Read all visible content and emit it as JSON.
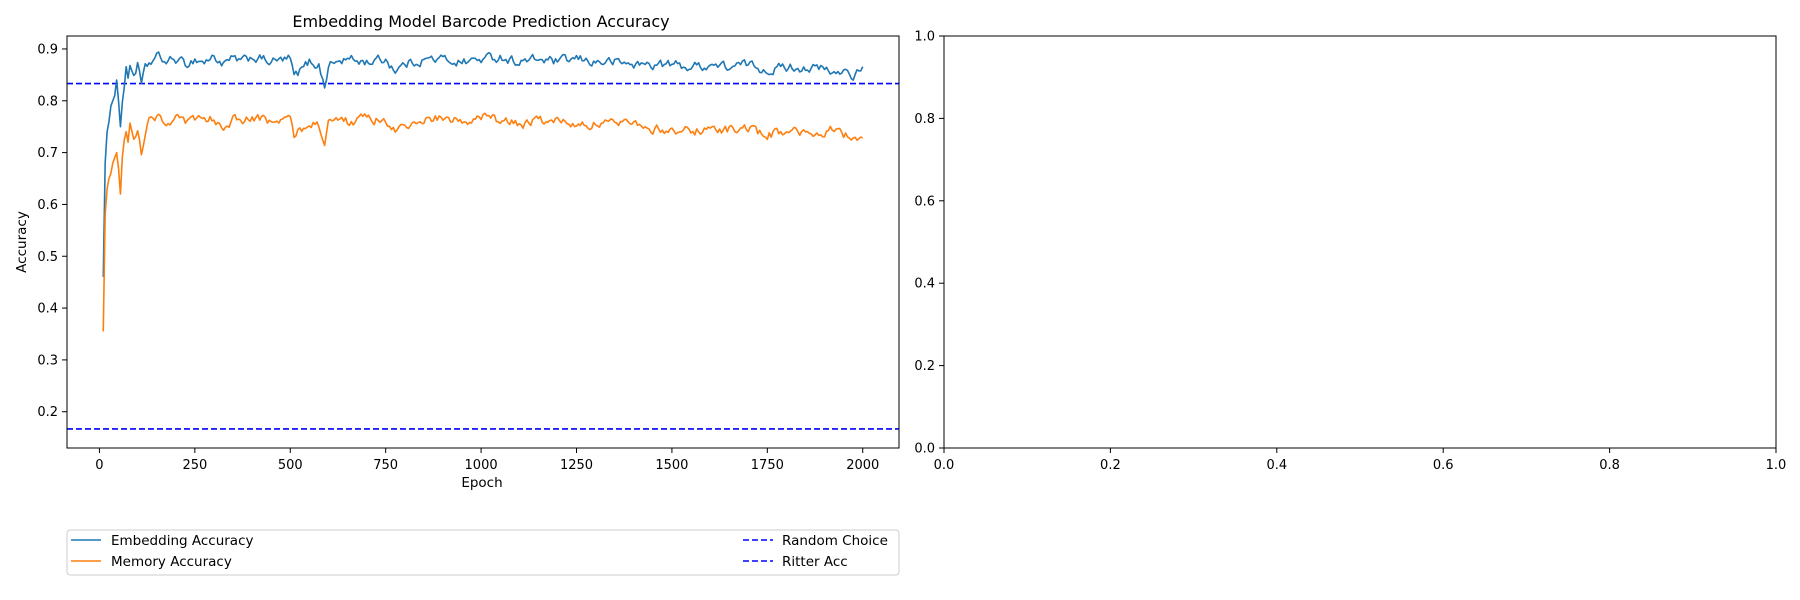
{
  "chart_data": [
    {
      "type": "line",
      "title": "Embedding Model Barcode Prediction Accuracy",
      "xlabel": "Epoch",
      "ylabel": "Accuracy",
      "xlim": [
        -85,
        2095
      ],
      "ylim": [
        0.13,
        0.925
      ],
      "xticks": [
        0,
        250,
        500,
        750,
        1000,
        1250,
        1500,
        1750,
        2000
      ],
      "yticks": [
        0.2,
        0.3,
        0.4,
        0.5,
        0.6,
        0.7,
        0.8,
        0.9
      ],
      "grid": false,
      "legend_position": "below",
      "series": [
        {
          "name": "Embedding Accuracy",
          "color": "#1f77b4",
          "style": "solid",
          "anchors": {
            "x": [
              10,
              15,
              20,
              25,
              30,
              35,
              40,
              45,
              50,
              55,
              60,
              65,
              70,
              75,
              80,
              90,
              100,
              110,
              120,
              130,
              150,
              175,
              200,
              225,
              250,
              275,
              300,
              325,
              350,
              375,
              400,
              450,
              500,
              510,
              530,
              550,
              575,
              590,
              600,
              625,
              650,
              700,
              750,
              775,
              800,
              825,
              850,
              900,
              950,
              1000,
              1050,
              1100,
              1150,
              1200,
              1250,
              1300,
              1350,
              1400,
              1450,
              1500,
              1550,
              1600,
              1650,
              1700,
              1750,
              1800,
              1850,
              1900,
              1925,
              1950,
              1975,
              2000
            ],
            "y": [
              0.46,
              0.68,
              0.74,
              0.76,
              0.79,
              0.8,
              0.81,
              0.84,
              0.8,
              0.75,
              0.8,
              0.83,
              0.86,
              0.84,
              0.87,
              0.85,
              0.87,
              0.83,
              0.86,
              0.87,
              0.885,
              0.875,
              0.88,
              0.87,
              0.88,
              0.875,
              0.885,
              0.87,
              0.88,
              0.875,
              0.885,
              0.875,
              0.88,
              0.845,
              0.86,
              0.875,
              0.87,
              0.825,
              0.87,
              0.875,
              0.88,
              0.875,
              0.88,
              0.86,
              0.87,
              0.875,
              0.88,
              0.88,
              0.875,
              0.88,
              0.885,
              0.875,
              0.88,
              0.875,
              0.88,
              0.875,
              0.875,
              0.87,
              0.87,
              0.87,
              0.865,
              0.87,
              0.865,
              0.87,
              0.86,
              0.865,
              0.865,
              0.86,
              0.85,
              0.86,
              0.85,
              0.86
            ]
          }
        },
        {
          "name": "Memory Accuracy",
          "color": "#ff7f0e",
          "style": "solid",
          "anchors": {
            "x": [
              10,
              15,
              20,
              25,
              30,
              35,
              40,
              45,
              50,
              55,
              60,
              65,
              70,
              75,
              80,
              90,
              100,
              110,
              120,
              130,
              150,
              175,
              200,
              225,
              250,
              275,
              300,
              325,
              350,
              375,
              400,
              450,
              500,
              510,
              530,
              550,
              575,
              590,
              600,
              625,
              650,
              700,
              750,
              775,
              800,
              825,
              850,
              900,
              950,
              1000,
              1050,
              1100,
              1150,
              1200,
              1250,
              1300,
              1350,
              1400,
              1450,
              1500,
              1550,
              1600,
              1650,
              1700,
              1750,
              1800,
              1850,
              1900,
              1925,
              1950,
              1975,
              2000
            ],
            "y": [
              0.355,
              0.58,
              0.63,
              0.65,
              0.66,
              0.68,
              0.69,
              0.7,
              0.67,
              0.62,
              0.69,
              0.72,
              0.74,
              0.72,
              0.75,
              0.73,
              0.75,
              0.7,
              0.74,
              0.76,
              0.77,
              0.76,
              0.765,
              0.755,
              0.765,
              0.76,
              0.765,
              0.75,
              0.765,
              0.76,
              0.765,
              0.76,
              0.765,
              0.735,
              0.745,
              0.76,
              0.755,
              0.72,
              0.755,
              0.765,
              0.76,
              0.765,
              0.76,
              0.74,
              0.75,
              0.755,
              0.765,
              0.765,
              0.76,
              0.77,
              0.76,
              0.755,
              0.76,
              0.76,
              0.76,
              0.755,
              0.755,
              0.765,
              0.745,
              0.745,
              0.74,
              0.745,
              0.745,
              0.745,
              0.735,
              0.74,
              0.735,
              0.735,
              0.745,
              0.735,
              0.73,
              0.735
            ]
          }
        },
        {
          "name": "Random Choice",
          "color": "#0000ff",
          "style": "dashed",
          "hline": 0.1667
        },
        {
          "name": "Ritter Acc",
          "color": "#0000ff",
          "style": "dashed",
          "hline": 0.8333
        }
      ]
    },
    {
      "type": "line",
      "title": "",
      "xlabel": "",
      "ylabel": "",
      "xlim": [
        0,
        1
      ],
      "ylim": [
        0,
        1
      ],
      "xticks": [
        0.0,
        0.2,
        0.4,
        0.6,
        0.8,
        1.0
      ],
      "yticks": [
        0.0,
        0.2,
        0.4,
        0.6,
        0.8,
        1.0
      ],
      "grid": false,
      "series": []
    }
  ],
  "legend": {
    "left_column": [
      "Embedding Accuracy",
      "Memory Accuracy"
    ],
    "right_column": [
      "Random Choice",
      "Ritter Acc"
    ]
  }
}
